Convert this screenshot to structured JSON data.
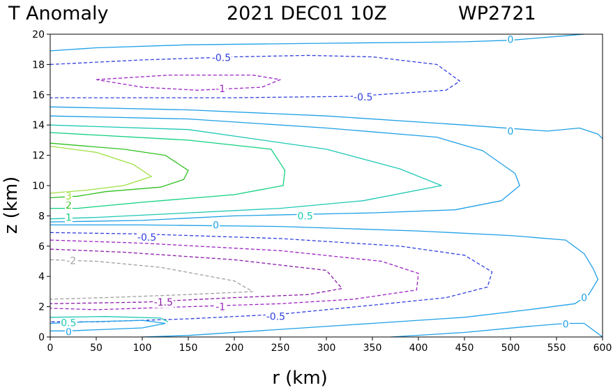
{
  "chart_data": {
    "type": "contour",
    "title": {
      "field": "T Anomaly",
      "datetime": "2021 DEC01 10Z",
      "storm": "WP2721"
    },
    "xlabel": "r (km)",
    "ylabel": "z (km)",
    "xlim": [
      0,
      600
    ],
    "ylim": [
      0,
      20
    ],
    "xticks": [
      0,
      50,
      100,
      150,
      200,
      250,
      300,
      350,
      400,
      450,
      500,
      550,
      600
    ],
    "yticks": [
      0,
      2,
      4,
      6,
      8,
      10,
      12,
      14,
      16,
      18,
      20
    ],
    "levels": [
      {
        "value": -2,
        "label": "-2",
        "color": "#a0a0a0",
        "dashed": true
      },
      {
        "value": -1.5,
        "label": "-1.5",
        "color": "#8a1aa8",
        "dashed": true
      },
      {
        "value": -1,
        "label": "-1",
        "color": "#9b22c4",
        "dashed": true
      },
      {
        "value": -0.5,
        "label": "-0.5",
        "color": "#2f3fe0",
        "dashed": true
      },
      {
        "value": 0,
        "label": "0",
        "color": "#1ea0e6",
        "dashed": false
      },
      {
        "value": 0.5,
        "label": "0.5",
        "color": "#1ec8b4",
        "dashed": false
      },
      {
        "value": 1,
        "label": "1",
        "color": "#10d080",
        "dashed": false
      },
      {
        "value": 2,
        "label": "2",
        "color": "#30c020",
        "dashed": false
      },
      {
        "value": 3,
        "label": "3",
        "color": "#a0e040",
        "dashed": false
      }
    ],
    "contours": [
      {
        "level": "0",
        "points": [
          [
            0,
            18.9
          ],
          [
            50,
            19.1
          ],
          [
            150,
            19.3
          ],
          [
            300,
            19.4
          ],
          [
            450,
            19.5
          ],
          [
            500,
            19.6
          ],
          [
            560,
            19.9
          ],
          [
            580,
            20
          ]
        ],
        "labels": [
          {
            "text": "0",
            "at": [
              500,
              19.65
            ]
          }
        ]
      },
      {
        "level": "-0.5",
        "points": [
          [
            0,
            18
          ],
          [
            100,
            18.3
          ],
          [
            200,
            18.5
          ],
          [
            280,
            18.6
          ],
          [
            350,
            18.5
          ],
          [
            420,
            18.0
          ],
          [
            445,
            16.9
          ],
          [
            430,
            16.3
          ],
          [
            330,
            15.9
          ],
          [
            200,
            15.8
          ],
          [
            0,
            15.8
          ]
        ],
        "labels": [
          {
            "text": "-0.5",
            "at": [
              186,
              18.45
            ]
          },
          {
            "text": "-0.5",
            "at": [
              340,
              15.85
            ]
          }
        ]
      },
      {
        "level": "-1",
        "points": [
          [
            50,
            17
          ],
          [
            130,
            17.3
          ],
          [
            220,
            17.3
          ],
          [
            250,
            17.0
          ],
          [
            230,
            16.5
          ],
          [
            160,
            16.3
          ],
          [
            100,
            16.5
          ],
          [
            50,
            17
          ]
        ],
        "labels": [
          {
            "text": "-1",
            "at": [
              185,
              16.4
            ]
          }
        ]
      },
      {
        "level": "0",
        "points": [
          [
            0,
            15.2
          ],
          [
            150,
            15.0
          ],
          [
            300,
            14.6
          ],
          [
            450,
            14.0
          ],
          [
            540,
            13.6
          ],
          [
            575,
            13.8
          ],
          [
            595,
            13.4
          ],
          [
            600,
            13.1
          ]
        ],
        "labels": [
          {
            "text": "0",
            "at": [
              500,
              13.6
            ]
          }
        ]
      },
      {
        "level": "0",
        "points": [
          [
            0,
            14.6
          ],
          [
            150,
            14.4
          ],
          [
            300,
            13.8
          ],
          [
            420,
            13.2
          ],
          [
            470,
            12.3
          ],
          [
            505,
            10.8
          ],
          [
            510,
            10.0
          ],
          [
            490,
            9.0
          ],
          [
            440,
            8.4
          ],
          [
            350,
            8.2
          ],
          [
            200,
            8.0
          ],
          [
            100,
            7.7
          ],
          [
            0,
            7.6
          ]
        ],
        "labels": []
      },
      {
        "level": "0.5",
        "points": [
          [
            0,
            14.0
          ],
          [
            150,
            13.7
          ],
          [
            300,
            12.4
          ],
          [
            380,
            11.1
          ],
          [
            425,
            10.0
          ],
          [
            340,
            9.0
          ],
          [
            250,
            8.5
          ],
          [
            150,
            8.2
          ],
          [
            50,
            7.9
          ],
          [
            0,
            7.8
          ]
        ],
        "labels": [
          {
            "text": "0.5",
            "at": [
              277,
              8.0
            ]
          }
        ]
      },
      {
        "level": "1",
        "points": [
          [
            0,
            13.5
          ],
          [
            150,
            13.0
          ],
          [
            240,
            12.4
          ],
          [
            255,
            11.0
          ],
          [
            253,
            10.0
          ],
          [
            200,
            9.4
          ],
          [
            100,
            8.9
          ],
          [
            30,
            8.5
          ],
          [
            0,
            8.5
          ]
        ],
        "labels": [
          {
            "text": "1",
            "at": [
              20,
              7.9
            ]
          }
        ]
      },
      {
        "level": "2",
        "points": [
          [
            0,
            12.8
          ],
          [
            80,
            12.4
          ],
          [
            125,
            12.0
          ],
          [
            150,
            11.0
          ],
          [
            145,
            10.4
          ],
          [
            120,
            9.9
          ],
          [
            60,
            9.6
          ],
          [
            30,
            9.3
          ],
          [
            0,
            9.2
          ]
        ],
        "labels": [
          {
            "text": "2",
            "at": [
              20,
              8.7
            ]
          }
        ]
      },
      {
        "level": "3",
        "points": [
          [
            0,
            12.6
          ],
          [
            50,
            12.2
          ],
          [
            90,
            11.4
          ],
          [
            110,
            10.6
          ],
          [
            80,
            10.0
          ],
          [
            40,
            9.7
          ],
          [
            0,
            9.5
          ]
        ],
        "labels": [
          {
            "text": "3",
            "at": [
              20,
              9.3
            ]
          }
        ]
      },
      {
        "level": "0",
        "points": [
          [
            0,
            7.4
          ],
          [
            100,
            7.4
          ],
          [
            250,
            7.3
          ],
          [
            400,
            7.0
          ],
          [
            500,
            6.7
          ],
          [
            560,
            6.4
          ],
          [
            580,
            5.5
          ],
          [
            590,
            4.5
          ],
          [
            595,
            3.8
          ],
          [
            585,
            2.8
          ],
          [
            570,
            2.2
          ],
          [
            520,
            1.8
          ],
          [
            450,
            1.3
          ],
          [
            350,
            0.9
          ],
          [
            250,
            0.5
          ],
          [
            150,
            0.1
          ],
          [
            100,
            0
          ]
        ],
        "labels": [
          {
            "text": "0",
            "at": [
              180,
              7.4
            ]
          },
          {
            "text": "0",
            "at": [
              580,
              2.6
            ]
          }
        ]
      },
      {
        "level": "-0.5",
        "points": [
          [
            0,
            6.9
          ],
          [
            100,
            6.8
          ],
          [
            250,
            6.5
          ],
          [
            380,
            6.0
          ],
          [
            450,
            5.4
          ],
          [
            480,
            4.3
          ],
          [
            475,
            3.3
          ],
          [
            430,
            2.6
          ],
          [
            350,
            2.1
          ],
          [
            250,
            1.5
          ],
          [
            150,
            1.2
          ],
          [
            50,
            1.0
          ],
          [
            0,
            1.0
          ]
        ],
        "labels": [
          {
            "text": "-0.5",
            "at": [
              105,
              6.6
            ]
          },
          {
            "text": "-0.5",
            "at": [
              245,
              1.35
            ]
          }
        ]
      },
      {
        "level": "-1",
        "points": [
          [
            0,
            6.4
          ],
          [
            100,
            6.2
          ],
          [
            250,
            5.7
          ],
          [
            360,
            5.0
          ],
          [
            400,
            4.2
          ],
          [
            398,
            3.1
          ],
          [
            330,
            2.5
          ],
          [
            250,
            2.2
          ],
          [
            150,
            2.0
          ],
          [
            50,
            1.8
          ],
          [
            0,
            1.9
          ]
        ],
        "labels": [
          {
            "text": "-1",
            "at": [
              185,
              2.0
            ]
          }
        ]
      },
      {
        "level": "-1.5",
        "points": [
          [
            0,
            5.8
          ],
          [
            80,
            5.6
          ],
          [
            200,
            5.1
          ],
          [
            300,
            4.4
          ],
          [
            317,
            3.2
          ],
          [
            280,
            2.8
          ],
          [
            200,
            2.6
          ],
          [
            100,
            2.3
          ],
          [
            0,
            2.2
          ]
        ],
        "labels": [
          {
            "text": "-1.5",
            "at": [
              123,
              2.3
            ]
          }
        ]
      },
      {
        "level": "-2",
        "points": [
          [
            0,
            5.1
          ],
          [
            50,
            5.0
          ],
          [
            120,
            4.6
          ],
          [
            200,
            3.7
          ],
          [
            220,
            3.0
          ],
          [
            150,
            2.8
          ],
          [
            60,
            2.6
          ],
          [
            0,
            2.5
          ]
        ],
        "labels": [
          {
            "text": "-2",
            "at": [
              23,
              5.05
            ]
          }
        ]
      },
      {
        "level": "0",
        "points": [
          [
            0,
            0.9
          ],
          [
            40,
            1.0
          ],
          [
            100,
            1.1
          ],
          [
            125,
            0.9
          ],
          [
            100,
            0.6
          ],
          [
            60,
            0.5
          ],
          [
            20,
            0.4
          ],
          [
            0,
            0.4
          ]
        ],
        "labels": [
          {
            "text": "0",
            "at": [
              20,
              0.35
            ]
          }
        ]
      },
      {
        "level": "0.5",
        "points": [
          [
            0,
            1.3
          ],
          [
            60,
            1.35
          ],
          [
            120,
            1.25
          ],
          [
            128,
            1.0
          ]
        ],
        "labels": [
          {
            "text": "0.5",
            "at": [
              20,
              0.95
            ]
          }
        ]
      },
      {
        "level": "0",
        "points": [
          [
            370,
            0
          ],
          [
            450,
            0.3
          ],
          [
            520,
            0.7
          ],
          [
            560,
            0.9
          ],
          [
            580,
            0.9
          ],
          [
            600,
            0
          ]
        ],
        "labels": [
          {
            "text": "0",
            "at": [
              560,
              0.85
            ]
          }
        ]
      }
    ]
  }
}
